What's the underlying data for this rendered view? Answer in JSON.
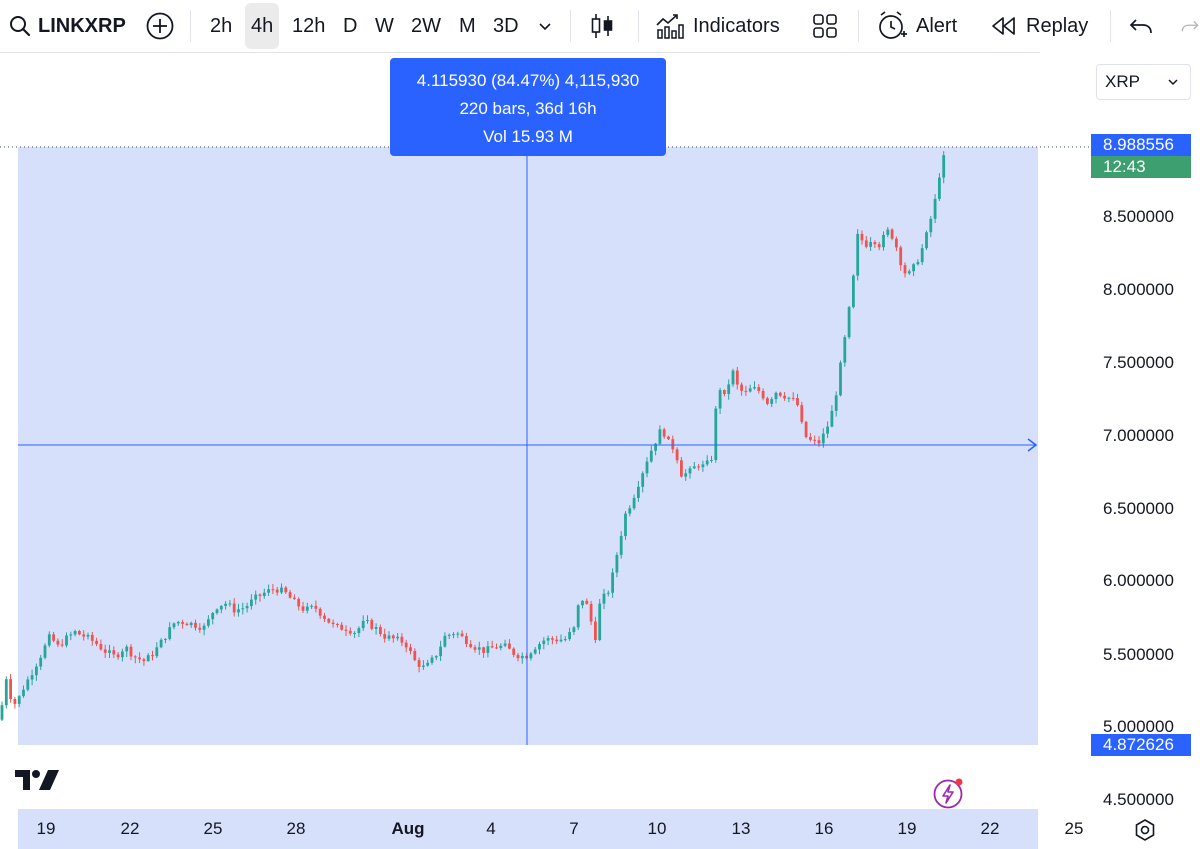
{
  "toolbar": {
    "symbol": "LINKXRP",
    "intervals": [
      "2h",
      "4h",
      "12h",
      "D",
      "W",
      "2W",
      "M",
      "3D"
    ],
    "active_interval": "4h",
    "indicators_label": "Indicators",
    "alert_label": "Alert",
    "replay_label": "Replay",
    "icons": [
      "search-icon",
      "add-symbol-icon",
      "chevron-down-icon",
      "candles-icon",
      "indicators-icon",
      "layout-grid-icon",
      "alert-clock-icon",
      "replay-rewind-icon",
      "undo-icon",
      "redo-icon"
    ]
  },
  "tooltip": {
    "line1": "4.115930 (84.47%) 4,115,930",
    "line2": "220 bars, 36d 16h",
    "line3": "Vol 15.93 M"
  },
  "currency": {
    "selected": "XRP"
  },
  "price_scale": {
    "labels": [
      "8.500000",
      "8.000000",
      "7.500000",
      "7.000000",
      "6.500000",
      "6.000000",
      "5.500000",
      "5.000000",
      "4.500000"
    ],
    "last_price": "8.988556",
    "countdown": "12:43",
    "cursor_price": "4.872626"
  },
  "time_scale": {
    "labels": [
      "19",
      "22",
      "25",
      "28",
      "Aug",
      "4",
      "7",
      "10",
      "13",
      "16",
      "19",
      "22",
      "25"
    ]
  },
  "colors": {
    "up": "#26a69a",
    "down": "#ef5350",
    "accent": "#2962ff",
    "range_fill": "#d6e0fb",
    "countdown_bg": "#3d9e6f"
  },
  "chart_data": {
    "type": "candlestick",
    "ylim": [
      4.4,
      9.2
    ],
    "x_ticks": [
      "19",
      "22",
      "25",
      "28",
      "Aug",
      "4",
      "7",
      "10",
      "13",
      "16",
      "19",
      "22",
      "25"
    ],
    "y_ticks": [
      4.5,
      5.0,
      5.5,
      6.0,
      6.5,
      7.0,
      7.5,
      8.0,
      8.5
    ],
    "last_price": 8.988556,
    "crosshair_price": 6.99,
    "range_measure": {
      "start_price": 4.872626,
      "end_price": 8.988556,
      "change": 4.11593,
      "change_pct": 84.47,
      "bars": 220,
      "duration": "36d 16h",
      "volume": "15.93 M"
    },
    "price_path": [
      [
        0,
        5.05
      ],
      [
        6,
        5.35
      ],
      [
        10,
        5.22
      ],
      [
        16,
        5.15
      ],
      [
        22,
        5.25
      ],
      [
        30,
        5.35
      ],
      [
        40,
        5.48
      ],
      [
        50,
        5.62
      ],
      [
        58,
        5.55
      ],
      [
        65,
        5.6
      ],
      [
        75,
        5.65
      ],
      [
        85,
        5.62
      ],
      [
        95,
        5.58
      ],
      [
        105,
        5.52
      ],
      [
        115,
        5.48
      ],
      [
        125,
        5.55
      ],
      [
        135,
        5.48
      ],
      [
        145,
        5.45
      ],
      [
        155,
        5.52
      ],
      [
        165,
        5.62
      ],
      [
        175,
        5.72
      ],
      [
        185,
        5.72
      ],
      [
        195,
        5.7
      ],
      [
        205,
        5.68
      ],
      [
        215,
        5.82
      ],
      [
        225,
        5.85
      ],
      [
        235,
        5.8
      ],
      [
        245,
        5.82
      ],
      [
        255,
        5.88
      ],
      [
        265,
        5.92
      ],
      [
        275,
        5.95
      ],
      [
        285,
        5.92
      ],
      [
        295,
        5.85
      ],
      [
        305,
        5.8
      ],
      [
        315,
        5.82
      ],
      [
        325,
        5.75
      ],
      [
        335,
        5.68
      ],
      [
        345,
        5.68
      ],
      [
        355,
        5.65
      ],
      [
        365,
        5.72
      ],
      [
        375,
        5.68
      ],
      [
        385,
        5.62
      ],
      [
        395,
        5.6
      ],
      [
        405,
        5.58
      ],
      [
        415,
        5.45
      ],
      [
        425,
        5.4
      ],
      [
        435,
        5.48
      ],
      [
        445,
        5.62
      ],
      [
        455,
        5.65
      ],
      [
        465,
        5.6
      ],
      [
        475,
        5.55
      ],
      [
        485,
        5.52
      ],
      [
        495,
        5.55
      ],
      [
        505,
        5.55
      ],
      [
        515,
        5.5
      ],
      [
        525,
        5.48
      ],
      [
        535,
        5.55
      ],
      [
        545,
        5.6
      ],
      [
        555,
        5.6
      ],
      [
        565,
        5.6
      ],
      [
        575,
        5.68
      ],
      [
        580,
        5.9
      ],
      [
        588,
        5.82
      ],
      [
        595,
        5.6
      ],
      [
        600,
        5.85
      ],
      [
        610,
        5.95
      ],
      [
        618,
        6.22
      ],
      [
        625,
        6.45
      ],
      [
        632,
        6.55
      ],
      [
        640,
        6.7
      ],
      [
        648,
        6.85
      ],
      [
        655,
        6.95
      ],
      [
        662,
        7.05
      ],
      [
        668,
        6.95
      ],
      [
        675,
        6.9
      ],
      [
        682,
        6.72
      ],
      [
        690,
        6.75
      ],
      [
        698,
        6.8
      ],
      [
        705,
        6.78
      ],
      [
        712,
        6.85
      ],
      [
        718,
        7.35
      ],
      [
        725,
        7.25
      ],
      [
        732,
        7.45
      ],
      [
        738,
        7.32
      ],
      [
        745,
        7.28
      ],
      [
        752,
        7.32
      ],
      [
        760,
        7.3
      ],
      [
        768,
        7.22
      ],
      [
        775,
        7.3
      ],
      [
        782,
        7.28
      ],
      [
        790,
        7.25
      ],
      [
        797,
        7.22
      ],
      [
        804,
        7.0
      ],
      [
        812,
        6.95
      ],
      [
        820,
        6.95
      ],
      [
        827,
        7.05
      ],
      [
        834,
        7.2
      ],
      [
        840,
        7.45
      ],
      [
        847,
        7.75
      ],
      [
        853,
        8.05
      ],
      [
        858,
        8.38
      ],
      [
        865,
        8.3
      ],
      [
        872,
        8.35
      ],
      [
        880,
        8.3
      ],
      [
        887,
        8.4
      ],
      [
        894,
        8.35
      ],
      [
        900,
        8.2
      ],
      [
        907,
        8.08
      ],
      [
        914,
        8.15
      ],
      [
        921,
        8.25
      ],
      [
        928,
        8.4
      ],
      [
        935,
        8.6
      ],
      [
        941,
        8.85
      ],
      [
        947,
        8.95
      ]
    ]
  }
}
